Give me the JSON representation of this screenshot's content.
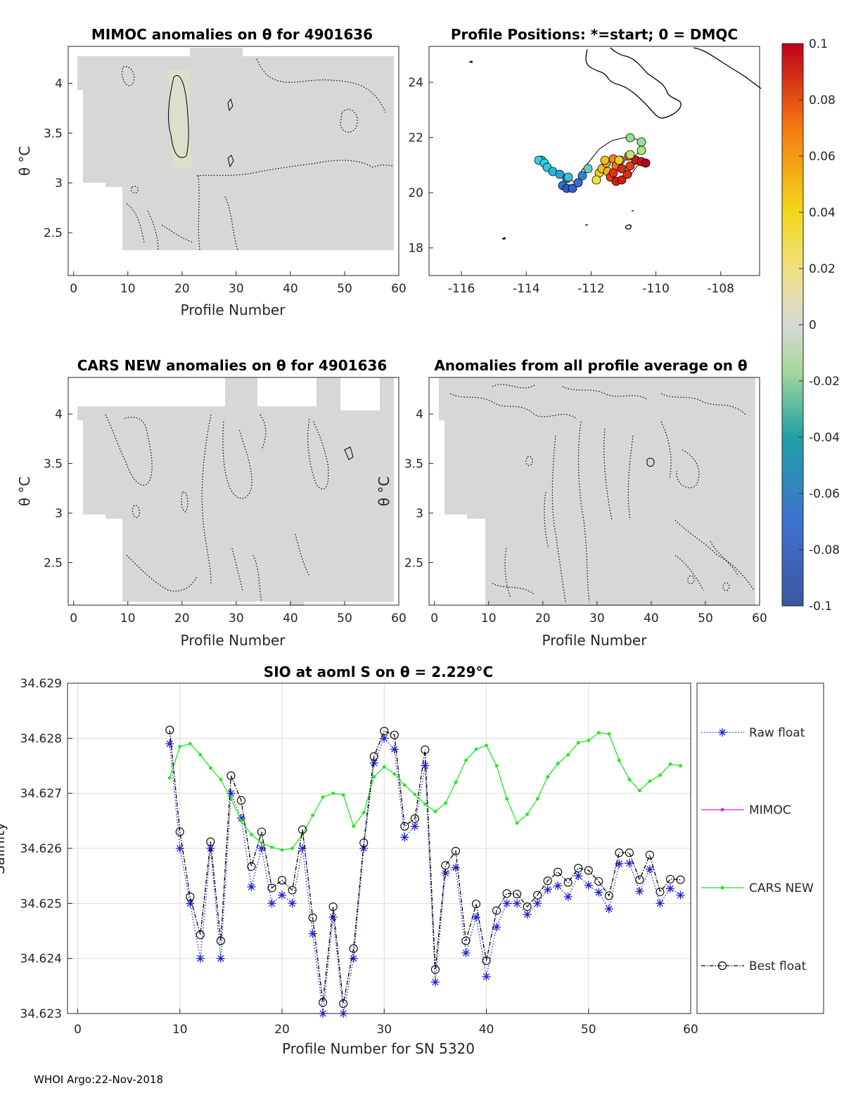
{
  "footer": "WHOI Argo:22-Nov-2018",
  "panels": {
    "mimoc": {
      "title": "MIMOC anomalies on θ  for 4901636",
      "ylabel": "θ °C",
      "xlabel": "Profile Number",
      "xticks": [
        "0",
        "10",
        "20",
        "30",
        "40",
        "50",
        "60"
      ],
      "yticks": [
        "2.5",
        "3",
        "3.5",
        "4"
      ]
    },
    "positions": {
      "title": "Profile Positions: *=start; 0 = DMQC",
      "xticks": [
        "-116",
        "-114",
        "-112",
        "-110",
        "-108"
      ],
      "yticks": [
        "18",
        "20",
        "22",
        "24"
      ]
    },
    "cars": {
      "title": "CARS NEW anomalies on θ for 4901636",
      "ylabel": "θ °C",
      "xlabel": "Profile Number",
      "xticks": [
        "0",
        "10",
        "20",
        "30",
        "40",
        "50",
        "60"
      ],
      "yticks": [
        "2.5",
        "3",
        "3.5",
        "4"
      ]
    },
    "allprof": {
      "title": "Anomalies from all profile average on θ",
      "ylabel": "θ °C",
      "xlabel": "Profile Number",
      "xticks": [
        "0",
        "10",
        "20",
        "30",
        "40",
        "50",
        "60"
      ],
      "yticks": [
        "2.5",
        "3",
        "3.5",
        "4"
      ]
    }
  },
  "colorbar": {
    "ticks": [
      "0.1",
      "0.08",
      "0.06",
      "0.04",
      "0.02",
      "0",
      "-0.02",
      "-0.04",
      "-0.06",
      "-0.08",
      "-0.1"
    ]
  },
  "chart_data": [
    {
      "type": "line",
      "title": "SIO at aoml S on θ = 2.229°C",
      "xlabel": "Profile Number for SN 5320",
      "ylabel": "Salinity",
      "xlim": [
        -1,
        60
      ],
      "ylim": [
        34.623,
        34.629
      ],
      "xticks": [
        "0",
        "10",
        "20",
        "30",
        "40",
        "50",
        "60"
      ],
      "yticks": [
        "34.623",
        "34.624",
        "34.625",
        "34.626",
        "34.627",
        "34.628",
        "34.629"
      ],
      "legend": [
        "Raw float",
        "MIMOC",
        "CARS NEW",
        "Best float"
      ],
      "series": [
        {
          "name": "Raw float",
          "color": "#1f1fd8",
          "x": [
            9,
            10,
            11,
            12,
            13,
            14,
            15,
            16,
            17,
            18,
            19,
            20,
            21,
            22,
            23,
            24,
            25,
            26,
            27,
            28,
            29,
            30,
            31,
            32,
            33,
            34,
            35,
            36,
            37,
            38,
            39,
            40,
            41,
            42,
            43,
            44,
            45,
            46,
            47,
            48,
            49,
            50,
            51,
            52,
            53,
            54,
            55,
            56,
            57,
            58,
            59
          ],
          "values": [
            34.6279,
            34.626,
            34.625,
            34.624,
            34.626,
            34.624,
            34.627,
            34.62655,
            34.6253,
            34.626,
            34.625,
            34.62515,
            34.625,
            34.626,
            34.62445,
            34.623,
            34.62475,
            34.623,
            34.624,
            34.626,
            34.62755,
            34.628,
            34.6278,
            34.6262,
            34.6264,
            34.6275,
            34.62357,
            34.62555,
            34.62565,
            34.6241,
            34.62475,
            34.62367,
            34.62457,
            34.625,
            34.625,
            34.6248,
            34.625,
            34.62525,
            34.62532,
            34.62512,
            34.6255,
            34.62533,
            34.6252,
            34.6249,
            34.62572,
            34.62573,
            34.62522,
            34.62562,
            34.625,
            34.62527,
            34.62515
          ]
        },
        {
          "name": "MIMOC",
          "color": "#e020e0",
          "x": [],
          "values": []
        },
        {
          "name": "CARS NEW",
          "color": "#22e822",
          "x": [
            9,
            10,
            11,
            12,
            13,
            14,
            15,
            16,
            17,
            18,
            19,
            20,
            21,
            22,
            23,
            24,
            25,
            26,
            27,
            28,
            29,
            30,
            31,
            32,
            33,
            34,
            35,
            36,
            37,
            38,
            39,
            40,
            41,
            42,
            43,
            44,
            45,
            46,
            47,
            48,
            49,
            50,
            51,
            52,
            53,
            54,
            55,
            56,
            57,
            58,
            59
          ],
          "values": [
            34.62728,
            34.62785,
            34.6279,
            34.6277,
            34.62746,
            34.62725,
            34.6269,
            34.6265,
            34.62625,
            34.6261,
            34.62602,
            34.62597,
            34.626,
            34.62625,
            34.6266,
            34.62693,
            34.627,
            34.62697,
            34.6264,
            34.62665,
            34.6273,
            34.62748,
            34.62735,
            34.62715,
            34.62698,
            34.6268,
            34.62667,
            34.62682,
            34.6272,
            34.6276,
            34.6278,
            34.62787,
            34.6275,
            34.6269,
            34.62646,
            34.62662,
            34.6269,
            34.6273,
            34.62754,
            34.6277,
            34.62792,
            34.62796,
            34.6281,
            34.62808,
            34.6276,
            34.62725,
            34.62705,
            34.62722,
            34.62733,
            34.62753,
            34.6275
          ]
        },
        {
          "name": "Best float",
          "color": "#000000",
          "x": [
            9,
            10,
            11,
            12,
            13,
            14,
            15,
            16,
            17,
            18,
            19,
            20,
            21,
            22,
            23,
            24,
            25,
            26,
            27,
            28,
            29,
            30,
            31,
            32,
            33,
            34,
            35,
            36,
            37,
            38,
            39,
            40,
            41,
            42,
            43,
            44,
            45,
            46,
            47,
            48,
            49,
            50,
            51,
            52,
            53,
            54,
            55,
            56,
            57,
            58,
            59
          ],
          "values": [
            34.62815,
            34.6263,
            34.62512,
            34.62443,
            34.62612,
            34.62432,
            34.62732,
            34.62687,
            34.62567,
            34.6263,
            34.62528,
            34.62542,
            34.62524,
            34.62634,
            34.62474,
            34.6232,
            34.62494,
            34.62318,
            34.62418,
            34.6261,
            34.62767,
            34.62813,
            34.62806,
            34.6264,
            34.62654,
            34.62779,
            34.6238,
            34.62569,
            34.62595,
            34.62432,
            34.62499,
            34.62396,
            34.62487,
            34.62518,
            34.62517,
            34.62494,
            34.62515,
            34.62541,
            34.62557,
            34.62538,
            34.62564,
            34.6256,
            34.6254,
            34.62514,
            34.62592,
            34.62592,
            34.62543,
            34.62588,
            34.62521,
            34.62544,
            34.62543
          ]
        }
      ]
    }
  ]
}
